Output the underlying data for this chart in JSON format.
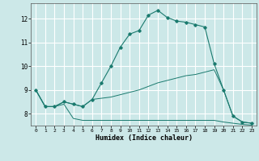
{
  "xlabel": "Humidex (Indice chaleur)",
  "bg_color": "#cce8e8",
  "grid_color": "#ffffff",
  "line_color": "#1a7a6e",
  "xlim": [
    -0.5,
    23.5
  ],
  "ylim": [
    7.5,
    12.65
  ],
  "yticks": [
    8,
    9,
    10,
    11,
    12
  ],
  "xticks": [
    0,
    1,
    2,
    3,
    4,
    5,
    6,
    7,
    8,
    9,
    10,
    11,
    12,
    13,
    14,
    15,
    16,
    17,
    18,
    19,
    20,
    21,
    22,
    23
  ],
  "line1_x": [
    0,
    1,
    2,
    3,
    4,
    5,
    6,
    7,
    8,
    9,
    10,
    11,
    12,
    13,
    14,
    15,
    16,
    17,
    18,
    19,
    20,
    21,
    22,
    23
  ],
  "line1_y": [
    9.0,
    8.3,
    8.3,
    8.5,
    8.4,
    8.3,
    8.6,
    9.3,
    10.0,
    10.8,
    11.35,
    11.5,
    12.15,
    12.35,
    12.05,
    11.9,
    11.85,
    11.75,
    11.65,
    10.1,
    9.0,
    7.9,
    7.65,
    7.6
  ],
  "line2_x": [
    0,
    1,
    2,
    3,
    4,
    5,
    6,
    7,
    8,
    9,
    10,
    11,
    12,
    13,
    14,
    15,
    16,
    17,
    18,
    19,
    20,
    21,
    22,
    23
  ],
  "line2_y": [
    9.0,
    8.3,
    8.3,
    8.5,
    8.4,
    8.3,
    8.6,
    8.65,
    8.7,
    8.8,
    8.9,
    9.0,
    9.15,
    9.3,
    9.4,
    9.5,
    9.6,
    9.65,
    9.75,
    9.85,
    9.0,
    7.9,
    7.65,
    7.6
  ],
  "line3_x": [
    0,
    1,
    2,
    3,
    4,
    5,
    6,
    7,
    8,
    9,
    10,
    11,
    12,
    13,
    14,
    15,
    16,
    17,
    18,
    19,
    20,
    21,
    22,
    23
  ],
  "line3_y": [
    9.0,
    8.3,
    8.3,
    8.4,
    7.8,
    7.72,
    7.72,
    7.72,
    7.72,
    7.72,
    7.72,
    7.72,
    7.72,
    7.72,
    7.72,
    7.72,
    7.72,
    7.72,
    7.72,
    7.72,
    7.65,
    7.6,
    7.55,
    7.52
  ]
}
